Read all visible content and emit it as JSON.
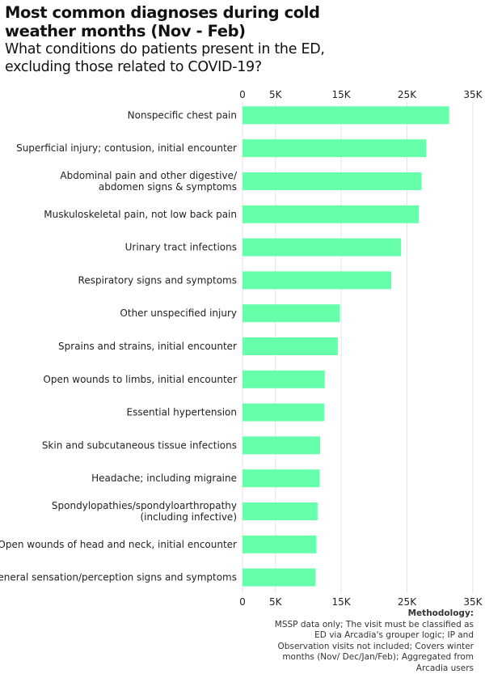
{
  "chart_data": {
    "type": "bar",
    "orientation": "horizontal",
    "title": "Most common diagnoses during cold weather months (Nov - Feb)",
    "subtitle": "What conditions do patients present in the ED, excluding those related to COVID-19?",
    "categories": [
      [
        "Nonspecific chest pain"
      ],
      [
        "Superficial injury; contusion, initial encounter"
      ],
      [
        "Abdominal pain and other digestive/",
        "abdomen signs & symptoms"
      ],
      [
        "Muskuloskeletal pain, not low back pain"
      ],
      [
        "Urinary tract infections"
      ],
      [
        "Respiratory signs and symptoms"
      ],
      [
        "Other unspecified injury"
      ],
      [
        "Sprains and strains, initial encounter"
      ],
      [
        "Open wounds to limbs, initial encounter"
      ],
      [
        "Essential hypertension"
      ],
      [
        "Skin and subcutaneous tissue infections"
      ],
      [
        "Headache; including migraine"
      ],
      [
        "Spondylopathies/spondyloarthropathy",
        "(including infective)"
      ],
      [
        "Open wounds of head and neck, initial encounter"
      ],
      [
        "General sensation/perception signs and symptoms"
      ]
    ],
    "values": [
      31400,
      27900,
      27200,
      26800,
      24100,
      22600,
      14800,
      14500,
      12500,
      12400,
      11800,
      11700,
      11400,
      11200,
      11100
    ],
    "xlim": [
      0,
      35000
    ],
    "ticks": [
      0,
      5000,
      15000,
      25000,
      35000
    ],
    "tick_labels": [
      "0",
      "5K",
      "15K",
      "25K",
      "35K"
    ],
    "xlabel": "",
    "ylabel": "",
    "grid": true,
    "bar_color": "#66ffaa",
    "grid_color": "#e4e4e4"
  },
  "methodology": {
    "title": "Methodology:",
    "text": "MSSP data only; The visit must be classified as ED via Arcadia's grouper logic; IP and Observation visits not included; Covers winter months (Nov/ Dec/Jan/Feb); Aggregated from Arcadia users"
  }
}
